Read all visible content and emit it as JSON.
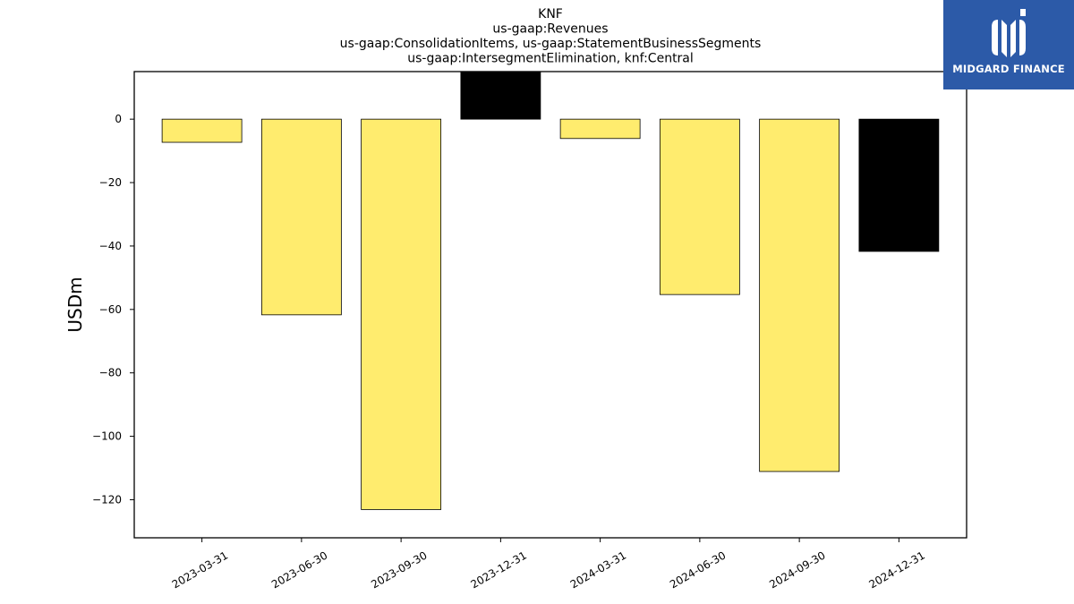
{
  "chart_data": {
    "type": "bar",
    "title_lines": [
      "KNF",
      "us-gaap:Revenues",
      "us-gaap:ConsolidationItems, us-gaap:StatementBusinessSegments",
      "us-gaap:IntersegmentElimination, knf:Central"
    ],
    "categories": [
      "2023-03-31",
      "2023-06-30",
      "2023-09-30",
      "2023-12-31",
      "2024-03-31",
      "2024-06-30",
      "2024-09-30",
      "2024-12-31"
    ],
    "values": [
      -7.3,
      -61.7,
      -123.1,
      16,
      -6.1,
      -55.3,
      -111.1,
      -41.7
    ],
    "bar_colors": [
      "#ffec6e",
      "#ffec6e",
      "#ffec6e",
      "#000000",
      "#ffec6e",
      "#ffec6e",
      "#ffec6e",
      "#000000"
    ],
    "xlabel": "",
    "ylabel": "USDm",
    "ylim": [
      -132,
      15
    ],
    "yticks": [
      0,
      -20,
      -40,
      -60,
      -80,
      -100,
      -120
    ],
    "grid": false
  },
  "logo": {
    "text": "MIDGARD FINANCE",
    "background": "#2c5aa8"
  }
}
